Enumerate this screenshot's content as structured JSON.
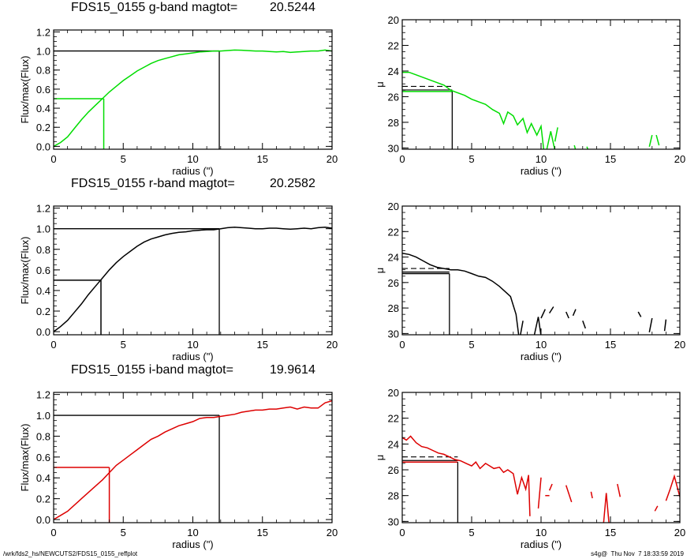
{
  "chart_data": [
    {
      "type": "line",
      "band": "g",
      "title": "FDS15_0155 g-band  magtot=",
      "magtot": "20.5244",
      "xlabel": "radius (\")",
      "ylabel": "Flux/max(Flux)",
      "xlim": [
        0,
        20
      ],
      "ylim": [
        -0.03,
        1.22
      ],
      "xticks": [
        "0",
        "5",
        "10",
        "15",
        "20"
      ],
      "yticks": [
        "0.0",
        "0.2",
        "0.4",
        "0.6",
        "0.8",
        "1.0",
        "1.2"
      ],
      "color": "#00dd00",
      "series": [
        {
          "x": [
            0,
            0.5,
            1,
            1.5,
            2,
            2.5,
            3,
            3.5,
            4,
            4.5,
            5,
            5.5,
            6,
            6.5,
            7,
            7.5,
            8,
            8.5,
            9,
            9.5,
            10,
            10.5,
            11,
            11.5,
            12,
            12.5,
            13,
            13.5,
            14,
            14.5,
            15,
            15.5,
            16,
            16.5,
            17,
            17.5,
            18,
            18.5,
            19,
            19.5,
            20
          ],
          "y": [
            0,
            0.04,
            0.1,
            0.19,
            0.28,
            0.36,
            0.43,
            0.5,
            0.57,
            0.63,
            0.69,
            0.74,
            0.79,
            0.83,
            0.87,
            0.9,
            0.92,
            0.94,
            0.96,
            0.97,
            0.98,
            0.99,
            0.995,
            1.0,
            1.0,
            1.005,
            1.01,
            1.008,
            1.004,
            1.0,
            1.0,
            0.995,
            0.99,
            0.995,
            0.985,
            0.99,
            0.995,
            1.0,
            1.0,
            1.01,
            1.0
          ]
        }
      ],
      "half_light": {
        "r": 3.6,
        "level": 0.5
      },
      "total": {
        "r": 11.9,
        "level": 1.0
      }
    },
    {
      "type": "line",
      "band": "g",
      "xlabel": "radius (\")",
      "ylabel": "μ",
      "xlim": [
        0,
        20
      ],
      "ylim": [
        30.1,
        20
      ],
      "y_inverted": true,
      "xticks": [
        "0",
        "5",
        "10",
        "15",
        "20"
      ],
      "yticks": [
        "20",
        "22",
        "24",
        "26",
        "28",
        "30"
      ],
      "color": "#00dd00",
      "series": [
        {
          "segments": [
            [
              [
                0,
                24.1
              ],
              [
                0.5,
                24.1
              ],
              [
                1,
                24.3
              ],
              [
                1.5,
                24.5
              ],
              [
                2,
                24.7
              ],
              [
                2.5,
                24.9
              ],
              [
                3,
                25.1
              ],
              [
                3.5,
                25.5
              ],
              [
                4,
                25.7
              ],
              [
                4.5,
                25.9
              ],
              [
                5,
                26.2
              ],
              [
                5.5,
                26.4
              ],
              [
                6,
                26.6
              ],
              [
                6.5,
                27.0
              ],
              [
                7,
                27.3
              ],
              [
                7.3,
                28.1
              ],
              [
                7.6,
                27.2
              ],
              [
                8,
                27.5
              ],
              [
                8.3,
                28.2
              ],
              [
                8.7,
                27.7
              ],
              [
                9.0,
                28.8
              ],
              [
                9.3,
                28.1
              ],
              [
                9.7,
                29.0
              ],
              [
                10.0,
                28.3
              ],
              [
                10.2,
                30.2
              ]
            ],
            [
              [
                10.4,
                30.2
              ],
              [
                10.7,
                28.7
              ],
              [
                11.0,
                30.2
              ]
            ],
            [
              [
                11.0,
                29.5
              ],
              [
                11.2,
                28.4
              ]
            ],
            [
              [
                12.4,
                29.8
              ],
              [
                12.5,
                30.2
              ]
            ],
            [
              [
                13.3,
                29.9
              ],
              [
                13.4,
                30.2
              ]
            ],
            [
              [
                17.8,
                29.9
              ],
              [
                18.0,
                29.0
              ]
            ],
            [
              [
                18.3,
                29.0
              ],
              [
                18.5,
                29.8
              ]
            ]
          ]
        }
      ],
      "half_light": {
        "r": 3.6,
        "mu": 25.6
      },
      "mean_mu": 25.2
    },
    {
      "type": "line",
      "band": "r",
      "title": "FDS15_0155 r-band  magtot=",
      "magtot": "20.2582",
      "xlabel": "radius (\")",
      "ylabel": "Flux/max(Flux)",
      "xlim": [
        0,
        20
      ],
      "ylim": [
        -0.03,
        1.22
      ],
      "xticks": [
        "0",
        "5",
        "10",
        "15",
        "20"
      ],
      "yticks": [
        "0.0",
        "0.2",
        "0.4",
        "0.6",
        "0.8",
        "1.0",
        "1.2"
      ],
      "color": "#000000",
      "series": [
        {
          "x": [
            0,
            0.5,
            1,
            1.5,
            2,
            2.5,
            3,
            3.5,
            4,
            4.5,
            5,
            5.5,
            6,
            6.5,
            7,
            7.5,
            8,
            8.5,
            9,
            9.5,
            10,
            10.5,
            11,
            11.5,
            12,
            12.5,
            13,
            13.5,
            14,
            14.5,
            15,
            15.5,
            16,
            16.5,
            17,
            17.5,
            18,
            18.5,
            19,
            19.5,
            20
          ],
          "y": [
            0,
            0.05,
            0.11,
            0.19,
            0.27,
            0.36,
            0.44,
            0.52,
            0.6,
            0.67,
            0.73,
            0.78,
            0.83,
            0.87,
            0.9,
            0.92,
            0.94,
            0.955,
            0.965,
            0.97,
            0.98,
            0.985,
            0.99,
            0.99,
            1.0,
            1.01,
            1.015,
            1.01,
            1.005,
            1.0,
            1.0,
            1.005,
            1.005,
            1.0,
            0.995,
            1.0,
            1.005,
            1.0,
            1.01,
            1.015,
            1.005
          ]
        }
      ],
      "half_light": {
        "r": 3.4,
        "level": 0.5
      },
      "total": {
        "r": 11.9,
        "level": 1.0
      }
    },
    {
      "type": "line",
      "band": "r",
      "xlabel": "radius (\")",
      "ylabel": "μ",
      "xlim": [
        0,
        20
      ],
      "ylim": [
        30.1,
        20
      ],
      "y_inverted": true,
      "xticks": [
        "0",
        "5",
        "10",
        "15",
        "20"
      ],
      "yticks": [
        "20",
        "22",
        "24",
        "26",
        "28",
        "30"
      ],
      "color": "#000000",
      "series": [
        {
          "segments": [
            [
              [
                0,
                23.7
              ],
              [
                0.5,
                23.8
              ],
              [
                1,
                24.0
              ],
              [
                1.5,
                24.3
              ],
              [
                2,
                24.6
              ],
              [
                2.5,
                24.8
              ],
              [
                3,
                24.9
              ],
              [
                3.5,
                25.0
              ],
              [
                4,
                25.0
              ],
              [
                4.5,
                25.1
              ],
              [
                5,
                25.3
              ],
              [
                5.5,
                25.5
              ],
              [
                6,
                25.6
              ],
              [
                6.5,
                25.9
              ],
              [
                7,
                26.3
              ],
              [
                7.5,
                26.8
              ],
              [
                7.8,
                27.1
              ],
              [
                8.0,
                27.8
              ],
              [
                8.2,
                28.5
              ],
              [
                8.4,
                30.2
              ]
            ],
            [
              [
                8.5,
                30.2
              ],
              [
                8.7,
                29.0
              ]
            ],
            [
              [
                9.5,
                30.2
              ],
              [
                9.8,
                28.7
              ],
              [
                10.0,
                30.2
              ]
            ],
            [
              [
                10.0,
                28.8
              ],
              [
                10.3,
                28.1
              ]
            ],
            [
              [
                10.6,
                28.4
              ],
              [
                10.9,
                27.9
              ]
            ],
            [
              [
                11.8,
                28.3
              ],
              [
                12.0,
                28.8
              ]
            ],
            [
              [
                12.3,
                28.6
              ],
              [
                12.5,
                28.1
              ]
            ],
            [
              [
                13.0,
                29.0
              ],
              [
                13.2,
                29.6
              ]
            ],
            [
              [
                17.0,
                28.3
              ],
              [
                17.2,
                28.7
              ]
            ],
            [
              [
                17.8,
                29.9
              ],
              [
                18.0,
                28.8
              ]
            ],
            [
              [
                18.9,
                29.8
              ],
              [
                19.0,
                28.9
              ]
            ]
          ]
        }
      ],
      "half_light": {
        "r": 3.4,
        "mu": 25.3
      },
      "mean_mu": 24.9
    },
    {
      "type": "line",
      "band": "i",
      "title": "FDS15_0155 i-band  magtot=",
      "magtot": "19.9614",
      "xlabel": "radius (\")",
      "ylabel": "Flux/max(Flux)",
      "xlim": [
        0,
        20
      ],
      "ylim": [
        -0.03,
        1.22
      ],
      "xticks": [
        "0",
        "5",
        "10",
        "15",
        "20"
      ],
      "yticks": [
        "0.0",
        "0.2",
        "0.4",
        "0.6",
        "0.8",
        "1.0",
        "1.2"
      ],
      "color": "#dd0000",
      "series": [
        {
          "x": [
            0,
            0.5,
            1,
            1.5,
            2,
            2.5,
            3,
            3.5,
            4,
            4.5,
            5,
            5.5,
            6,
            6.5,
            7,
            7.5,
            8,
            8.5,
            9,
            9.5,
            10,
            10.5,
            11,
            11.5,
            12,
            12.5,
            13,
            13.5,
            14,
            14.5,
            15,
            15.5,
            16,
            16.5,
            17,
            17.5,
            18,
            18.5,
            19,
            19.5,
            20
          ],
          "y": [
            0,
            0.04,
            0.08,
            0.14,
            0.2,
            0.26,
            0.32,
            0.38,
            0.45,
            0.52,
            0.57,
            0.62,
            0.67,
            0.72,
            0.77,
            0.8,
            0.84,
            0.87,
            0.9,
            0.92,
            0.94,
            0.97,
            0.98,
            0.98,
            0.99,
            1.0,
            1.01,
            1.03,
            1.04,
            1.05,
            1.05,
            1.06,
            1.06,
            1.07,
            1.08,
            1.06,
            1.08,
            1.07,
            1.07,
            1.12,
            1.14
          ]
        }
      ],
      "half_light": {
        "r": 4.0,
        "level": 0.5
      },
      "total": {
        "r": 11.9,
        "level": 1.0
      }
    },
    {
      "type": "line",
      "band": "i",
      "xlabel": "radius (\")",
      "ylabel": "μ",
      "xlim": [
        0,
        20
      ],
      "ylim": [
        30.1,
        20
      ],
      "y_inverted": true,
      "xticks": [
        "0",
        "5",
        "10",
        "15",
        "20"
      ],
      "yticks": [
        "20",
        "22",
        "24",
        "26",
        "28",
        "30"
      ],
      "color": "#dd0000",
      "series": [
        {
          "segments": [
            [
              [
                0,
                23.5
              ],
              [
                0.3,
                23.7
              ],
              [
                0.6,
                23.4
              ],
              [
                1,
                23.9
              ],
              [
                1.4,
                24.2
              ],
              [
                1.8,
                24.3
              ],
              [
                2.2,
                24.5
              ],
              [
                2.6,
                24.7
              ],
              [
                3,
                24.8
              ],
              [
                3.4,
                25.0
              ],
              [
                3.8,
                25.2
              ],
              [
                4.2,
                25.3
              ],
              [
                4.6,
                25.5
              ],
              [
                5,
                25.7
              ],
              [
                5.3,
                25.4
              ],
              [
                5.6,
                25.9
              ],
              [
                6.0,
                25.5
              ],
              [
                6.3,
                25.7
              ],
              [
                6.6,
                25.9
              ],
              [
                7.0,
                25.8
              ],
              [
                7.3,
                26.2
              ],
              [
                7.6,
                26.0
              ],
              [
                8.0,
                26.3
              ],
              [
                8.3,
                27.9
              ],
              [
                8.6,
                26.6
              ],
              [
                8.9,
                27.5
              ],
              [
                9.1,
                26.4
              ],
              [
                9.2,
                29.6
              ]
            ],
            [
              [
                9.8,
                29.0
              ],
              [
                10.0,
                26.6
              ]
            ],
            [
              [
                10.3,
                28.0
              ],
              [
                10.6,
                28.0
              ]
            ],
            [
              [
                10.6,
                27.6
              ],
              [
                10.8,
                27.1
              ]
            ],
            [
              [
                11.8,
                27.2
              ],
              [
                12.2,
                28.5
              ]
            ],
            [
              [
                13.6,
                27.7
              ],
              [
                13.7,
                28.2
              ]
            ],
            [
              [
                14.5,
                30.2
              ],
              [
                14.7,
                27.8
              ],
              [
                14.9,
                30.2
              ]
            ],
            [
              [
                15.5,
                27.1
              ],
              [
                15.7,
                28.1
              ]
            ],
            [
              [
                18.2,
                29.2
              ],
              [
                18.4,
                28.8
              ]
            ],
            [
              [
                19.0,
                28.4
              ],
              [
                19.3,
                27.5
              ],
              [
                19.6,
                26.5
              ],
              [
                20,
                28.1
              ]
            ]
          ]
        }
      ],
      "half_light": {
        "r": 4.0,
        "mu": 25.4
      },
      "mean_mu": 25.0
    }
  ],
  "footer": {
    "left": "/wrk/fds2_hs/NEWCUTS2/FDS15_0155_reffplot",
    "right": "s4g@  Thu Nov  7 18:33:59 2019"
  }
}
